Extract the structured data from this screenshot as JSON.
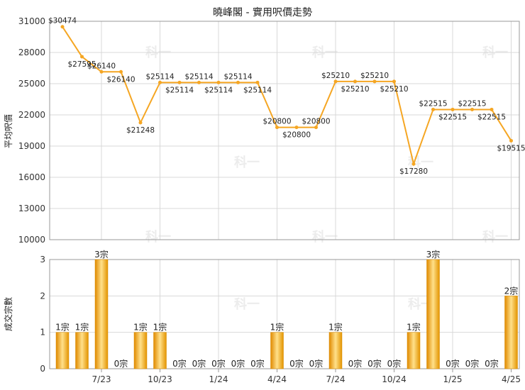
{
  "chart_data": [
    {
      "type": "line",
      "title": "曉峰閣 - 實用呎價走勢",
      "ylabel": "平均呎價",
      "ylim": [
        10000,
        31000
      ],
      "y_ticks": [
        10000,
        13000,
        16000,
        19000,
        22000,
        25000,
        28000,
        31000
      ],
      "grid": true,
      "series": [
        {
          "values": [
            30474,
            27595,
            26140,
            26140,
            21248,
            25114,
            25114,
            25114,
            25114,
            25114,
            25114,
            20800,
            20800,
            20800,
            25210,
            25210,
            25210,
            25210,
            17280,
            22515,
            22515,
            22515,
            22515,
            19515
          ],
          "labels": [
            "$30474",
            "$27595",
            "$26140",
            "$26140",
            "$21248",
            "$25114",
            "$25114",
            "$25114",
            "$25114",
            "$25114",
            "$25114",
            "$20800",
            "$20800",
            "$20800",
            "$25210",
            "$25210",
            "$25210",
            "$25210",
            "$17280",
            "$22515",
            "$22515",
            "$22515",
            "$22515",
            "$19515"
          ],
          "color": "#f5a623"
        }
      ]
    },
    {
      "type": "bar",
      "ylabel": "成交宗數",
      "ylim": [
        0,
        3
      ],
      "y_ticks": [
        0,
        1,
        2,
        3
      ],
      "grid": true,
      "values": [
        1,
        1,
        3,
        0,
        1,
        1,
        0,
        0,
        0,
        0,
        0,
        1,
        0,
        0,
        1,
        0,
        0,
        0,
        1,
        3,
        0,
        0,
        0,
        2
      ],
      "labels": [
        "1宗",
        "1宗",
        "3宗",
        "0宗",
        "1宗",
        "1宗",
        "0宗",
        "0宗",
        "0宗",
        "0宗",
        "0宗",
        "1宗",
        "0宗",
        "0宗",
        "1宗",
        "0宗",
        "0宗",
        "0宗",
        "1宗",
        "3宗",
        "0宗",
        "0宗",
        "0宗",
        "2宗"
      ],
      "color": "#f0a818"
    }
  ],
  "x_axis": {
    "tick_labels": [
      "7/23",
      "10/23",
      "1/24",
      "4/24",
      "7/24",
      "10/24",
      "1/25",
      "4/25"
    ]
  },
  "watermark": "科一"
}
